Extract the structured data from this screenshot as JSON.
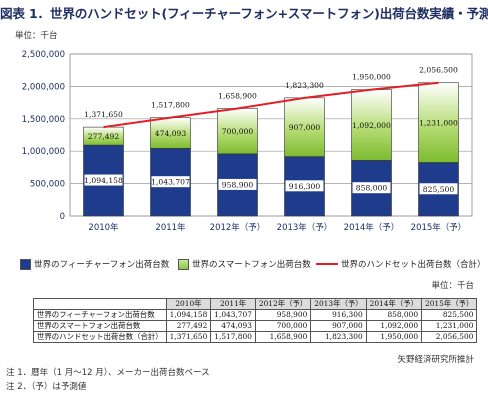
{
  "title": "図表 1．世界のハンドセット(フィーチャーフォン+スマートフォン)出荷台数実績・予測",
  "unit_label": "単位：千台",
  "chart_data": {
    "type": "bar",
    "stacked": true,
    "categories": [
      "2010年",
      "2011年",
      "2012年（予）",
      "2013年（予）",
      "2014年（予）",
      "2015年（予）"
    ],
    "ylim": [
      0,
      2500000
    ],
    "yticks": [
      "0",
      "500,000",
      "1,000,000",
      "1,500,000",
      "2,000,000",
      "2,500,000"
    ],
    "ytick_values": [
      0,
      500000,
      1000000,
      1500000,
      2000000,
      2500000
    ],
    "grid": true,
    "legend_position": "bottom",
    "series": [
      {
        "name": "世界のフィーチャーフォン出荷台数",
        "kind": "bar",
        "color": "#1f3b8c",
        "values": [
          1094158,
          1043707,
          958900,
          916300,
          858000,
          825500
        ],
        "labels": [
          "1,094,158",
          "1,043,707",
          "958,900",
          "916,300",
          "858,000",
          "825,500"
        ]
      },
      {
        "name": "世界のスマートフォン出荷台数",
        "kind": "bar",
        "color": "#8cc63f",
        "values": [
          277492,
          474093,
          700000,
          907000,
          1092000,
          1231000
        ],
        "labels": [
          "277,492",
          "474,093",
          "700,000",
          "907,000",
          "1,092,000",
          "1,231,000"
        ]
      },
      {
        "name": "世界のハンドセット出荷台数（合計）",
        "kind": "line",
        "color": "#e21f26",
        "values": [
          1371650,
          1517800,
          1658900,
          1823300,
          1950000,
          2056500
        ],
        "labels": [
          "1,371,650",
          "1,517,800",
          "1,658,900",
          "1,823,300",
          "1,950,000",
          "2,056,500"
        ]
      }
    ]
  },
  "table": {
    "unit_label": "単位：千台",
    "headers": [
      "2010年",
      "2011年",
      "2012年（予）",
      "2013年（予）",
      "2014年（予）",
      "2015年（予）"
    ],
    "rows": [
      {
        "label": "世界のフィーチャーフォン出荷台数",
        "cells": [
          "1,094,158",
          "1,043,707",
          "958,900",
          "916,300",
          "858,000",
          "825,500"
        ]
      },
      {
        "label": "世界のスマートフォン出荷台数",
        "cells": [
          "277,492",
          "474,093",
          "700,000",
          "907,000",
          "1,092,000",
          "1,231,000"
        ]
      },
      {
        "label": "世界のハンドセット出荷台数（合計）",
        "cells": [
          "1,371,650",
          "1,517,800",
          "1,658,900",
          "1,823,300",
          "1,950,000",
          "2,056,500"
        ]
      }
    ]
  },
  "source": "矢野経済研究所推計",
  "notes": [
    "注 1．暦年（1 月～12 月）、メーカー出荷台数ベース",
    "注 2．（予）は予測値"
  ]
}
